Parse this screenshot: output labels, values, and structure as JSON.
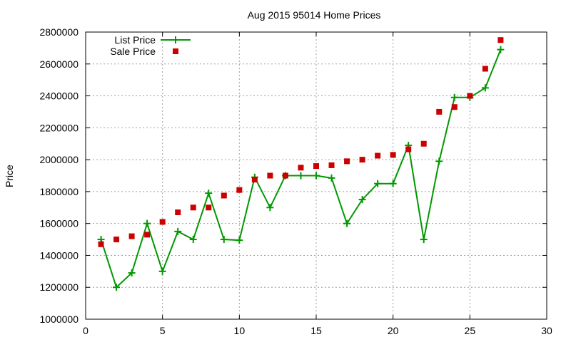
{
  "chart_data": {
    "type": "line",
    "title": "Aug 2015 95014 Home Prices",
    "xlabel": "",
    "ylabel": "Price",
    "xlim": [
      0,
      30
    ],
    "ylim": [
      1000000,
      2800000
    ],
    "xticks": [
      0,
      5,
      10,
      15,
      20,
      25,
      30
    ],
    "yticks": [
      1000000,
      1200000,
      1400000,
      1600000,
      1800000,
      2000000,
      2200000,
      2400000,
      2600000,
      2800000
    ],
    "grid": true,
    "legend_position": "top-left",
    "series": [
      {
        "name": "List Price",
        "style": "line+cross",
        "color": "#009900",
        "x": [
          1,
          2,
          3,
          4,
          5,
          6,
          7,
          8,
          9,
          10,
          11,
          12,
          13,
          14,
          15,
          16,
          17,
          18,
          19,
          20,
          21,
          22,
          23,
          24,
          25,
          26,
          27
        ],
        "y": [
          1500000,
          1200000,
          1290000,
          1600000,
          1300000,
          1550000,
          1500000,
          1790000,
          1500000,
          1495000,
          1890000,
          1700000,
          1900000,
          1900000,
          1900000,
          1885000,
          1600000,
          1750000,
          1850000,
          1850000,
          2090000,
          1500000,
          1990000,
          2390000,
          2390000,
          2450000,
          2690000
        ]
      },
      {
        "name": "Sale Price",
        "style": "square",
        "color": "#cc0000",
        "x": [
          1,
          2,
          3,
          4,
          5,
          6,
          7,
          8,
          9,
          10,
          11,
          12,
          13,
          14,
          15,
          16,
          17,
          18,
          19,
          20,
          21,
          22,
          23,
          24,
          25,
          26,
          27
        ],
        "y": [
          1470000,
          1500000,
          1520000,
          1530000,
          1610000,
          1670000,
          1700000,
          1700000,
          1775000,
          1810000,
          1875000,
          1900000,
          1900000,
          1950000,
          1960000,
          1965000,
          1990000,
          2000000,
          2025000,
          2030000,
          2065000,
          2100000,
          2300000,
          2330000,
          2400000,
          2570000,
          2750000
        ]
      }
    ]
  }
}
